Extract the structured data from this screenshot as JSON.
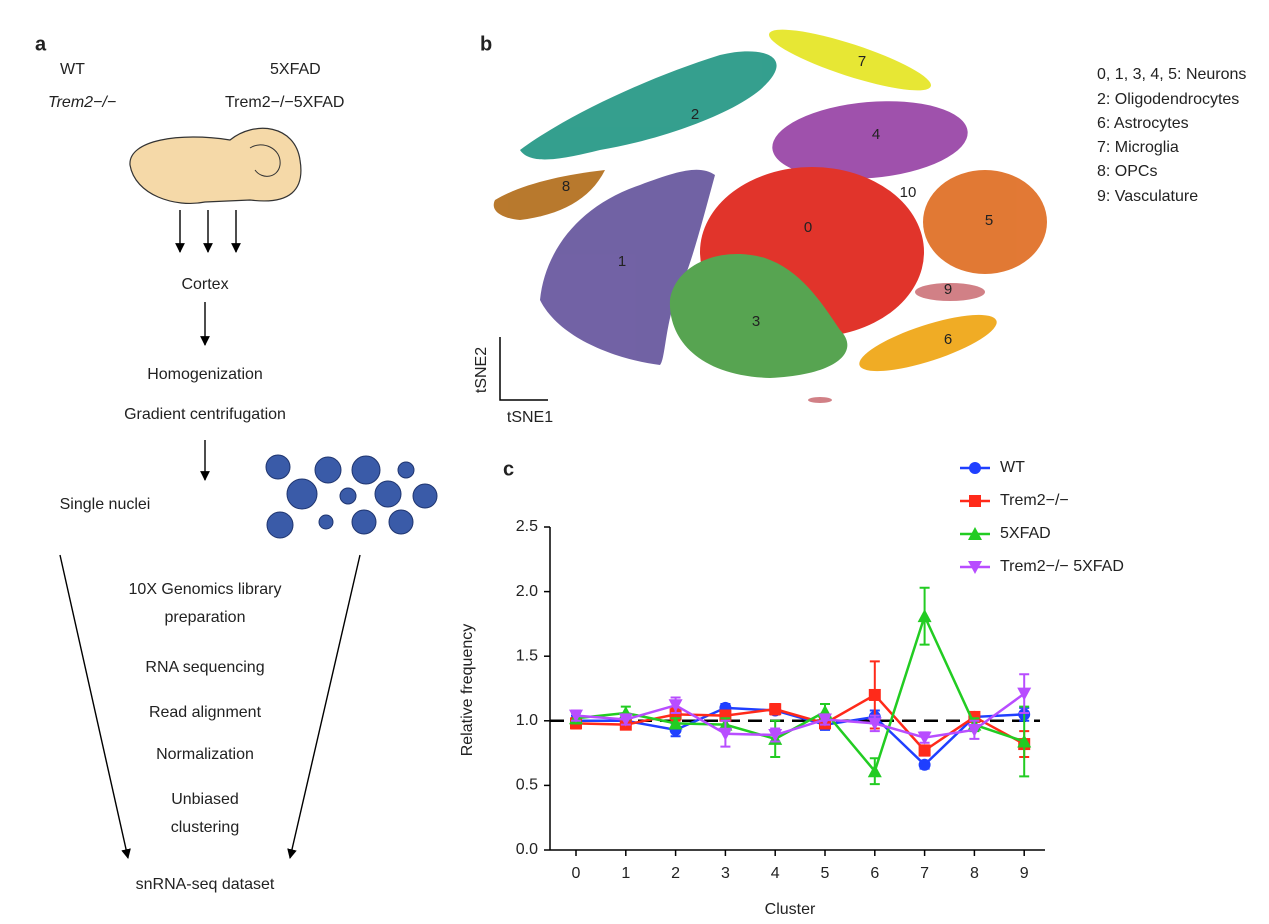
{
  "panel_a": {
    "label": "a",
    "genotypes": [
      "WT",
      "5XFAD",
      "Trem2−/−",
      "Trem2−/−5XFAD"
    ],
    "steps": [
      "Cortex",
      "Homogenization",
      "Gradient centrifugation",
      "Single nuclei",
      "10X Genomics library",
      "preparation",
      "RNA sequencing",
      "Read alignment",
      "Normalization",
      "Unbiased",
      "clustering",
      "snRNA-seq dataset"
    ]
  },
  "panel_b": {
    "label": "b",
    "clusters": [
      "0",
      "1",
      "2",
      "3",
      "4",
      "5",
      "6",
      "7",
      "8",
      "9",
      "10"
    ],
    "x_axis": "tSNE1",
    "y_axis": "tSNE2",
    "legend": [
      "0, 1, 3, 4, 5: Neurons",
      "2: Oligodendrocytes",
      "6: Astrocytes",
      "7: Microglia",
      "8: OPCs",
      "9: Vasculature"
    ]
  },
  "chart_data": {
    "type": "line",
    "panel_label": "c",
    "x_label": "Cluster",
    "y_label": "Relative frequency",
    "categories": [
      "0",
      "1",
      "2",
      "3",
      "4",
      "5",
      "6",
      "7",
      "8",
      "9"
    ],
    "ylim": [
      0,
      2.5
    ],
    "yticks": [
      {
        "value": 0,
        "label": "0.0"
      },
      0.5,
      {
        "value": 1,
        "label": "1.0"
      },
      1.5,
      {
        "value": 2,
        "label": "2.0"
      },
      2.5
    ],
    "reference_line": 1,
    "series": [
      {
        "name": "WT",
        "color": "#1f3fff",
        "marker": "circle",
        "values": [
          1.0,
          1.0,
          0.93,
          1.1,
          1.08,
          0.97,
          1.03,
          0.66,
          1.03,
          1.05
        ],
        "errors": [
          0.04,
          0.03,
          0.05,
          0.03,
          0.03,
          0.04,
          0.05,
          0.03,
          0.03,
          0.05
        ]
      },
      {
        "name": "Trem2−/−",
        "color": "#ff2a1a",
        "marker": "square",
        "values": [
          0.98,
          0.97,
          1.05,
          1.04,
          1.09,
          0.98,
          1.2,
          0.77,
          1.03,
          0.82
        ],
        "errors": [
          0.04,
          0.03,
          0.05,
          0.04,
          0.04,
          0.04,
          0.26,
          0.04,
          0.03,
          0.1
        ]
      },
      {
        "name": "5XFAD",
        "color": "#22cc22",
        "marker": "triangle-up",
        "values": [
          1.02,
          1.06,
          0.98,
          0.97,
          0.86,
          1.07,
          0.61,
          1.81,
          0.97,
          0.84
        ],
        "errors": [
          0.04,
          0.05,
          0.04,
          0.05,
          0.14,
          0.06,
          0.1,
          0.22,
          0.05,
          0.27
        ]
      },
      {
        "name": "Trem2−/− 5XFAD",
        "color": "#b84dff",
        "marker": "triangle-down",
        "values": [
          1.04,
          1.01,
          1.12,
          0.9,
          0.89,
          1.01,
          0.98,
          0.87,
          0.93,
          1.21
        ],
        "errors": [
          0.04,
          0.04,
          0.06,
          0.1,
          0.05,
          0.04,
          0.06,
          0.04,
          0.07,
          0.15
        ]
      }
    ]
  }
}
